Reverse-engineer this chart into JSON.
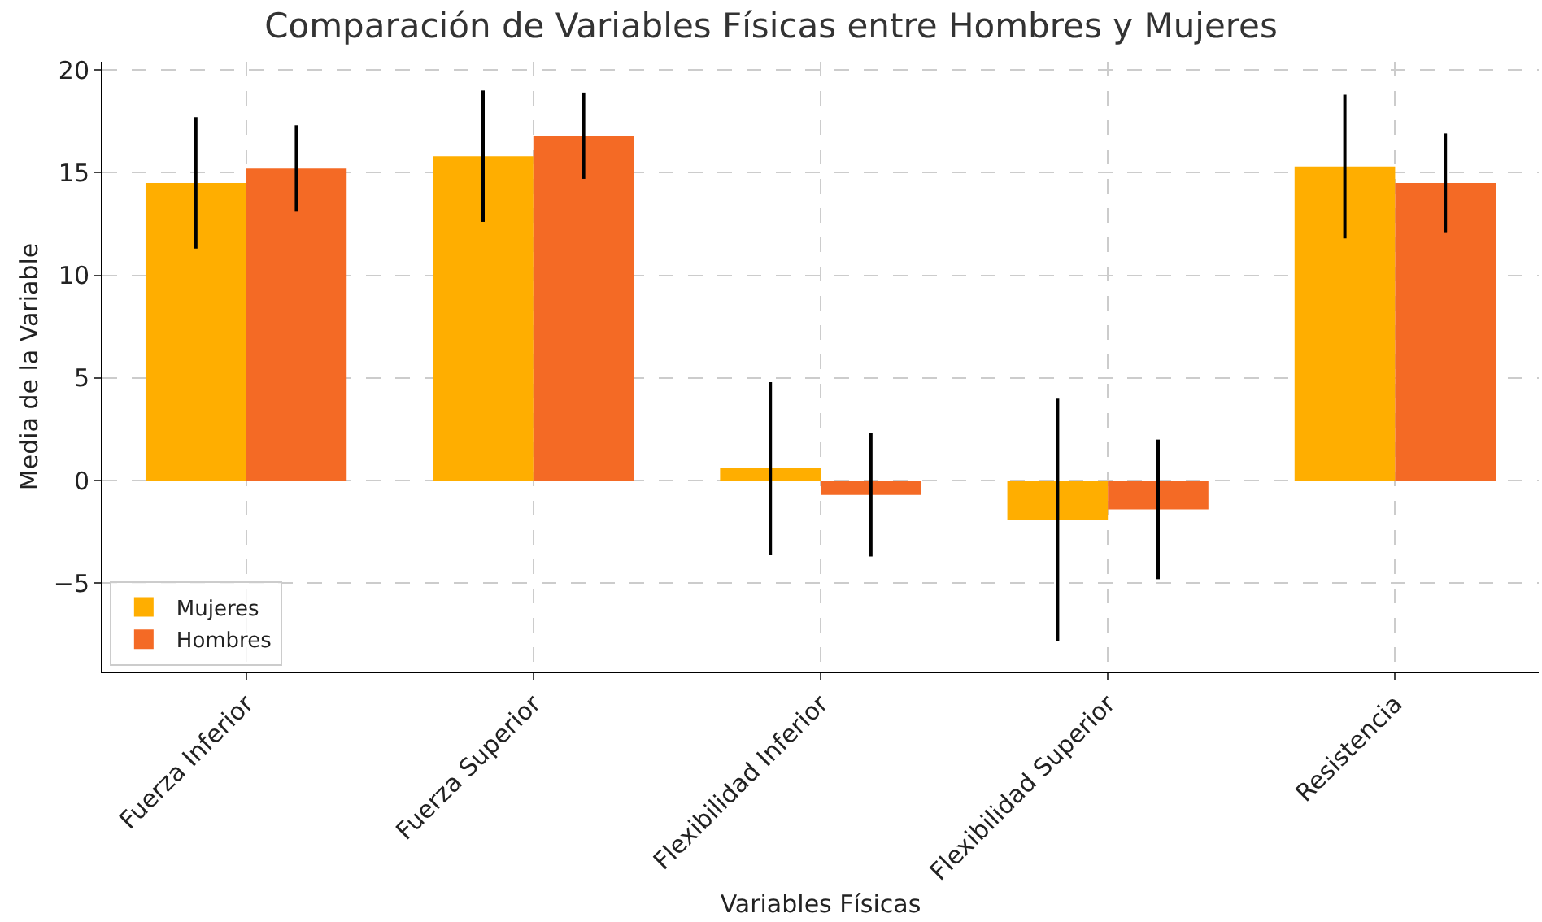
{
  "chart_data": {
    "type": "bar",
    "title": "Comparación de Variables Físicas entre Hombres y Mujeres",
    "xlabel": "Variables Físicas",
    "ylabel": "Media de la Variable",
    "categories": [
      "Fuerza Inferior",
      "Fuerza Superior",
      "Flexibilidad Inferior",
      "Flexibilidad Superior",
      "Resistencia"
    ],
    "series": [
      {
        "name": "Mujeres",
        "color": "#ffae00",
        "values": [
          14.5,
          15.8,
          0.6,
          -1.9,
          15.3
        ],
        "errors": [
          3.2,
          3.2,
          4.2,
          5.9,
          3.5
        ]
      },
      {
        "name": "Hombres",
        "color": "#f46a25",
        "values": [
          15.2,
          16.8,
          -0.7,
          -1.4,
          14.5
        ],
        "errors": [
          2.1,
          2.1,
          3.0,
          3.4,
          2.4
        ]
      }
    ],
    "ylim": [
      -9.3,
      20.4
    ],
    "yticks": [
      {
        "value": -5,
        "label": "−5"
      },
      0,
      5,
      10,
      15,
      20
    ],
    "grid": true,
    "legend": "bottom left"
  }
}
